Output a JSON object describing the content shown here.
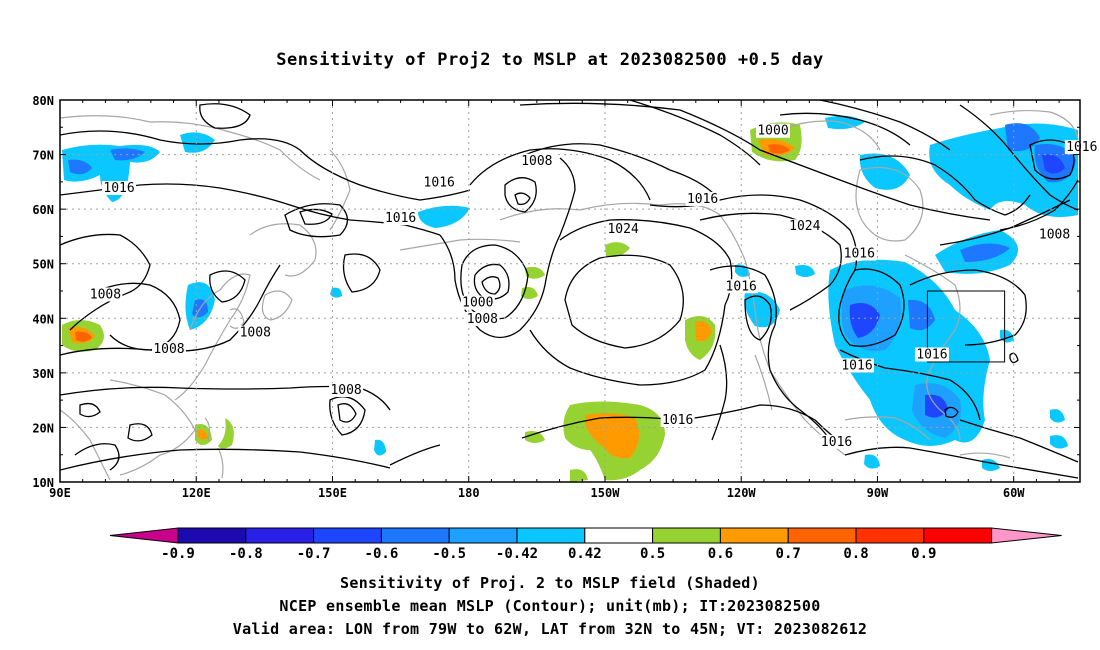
{
  "title": "Sensitivity of Proj2 to MSLP at 2023082500 +0.5 day",
  "axes": {
    "lon_labels": [
      "90E",
      "120E",
      "150E",
      "180",
      "150W",
      "120W",
      "90W",
      "60W"
    ],
    "lat_labels": [
      "80N",
      "70N",
      "60N",
      "50N",
      "40N",
      "30N",
      "20N",
      "10N"
    ]
  },
  "contour_labels": [
    {
      "text": "1016",
      "lon": 103,
      "lat": 63.5
    },
    {
      "text": "1016",
      "lon": 173.5,
      "lat": 64.5
    },
    {
      "text": "1016",
      "lon": 165,
      "lat": 58
    },
    {
      "text": "1008",
      "lon": 195,
      "lat": 68.5
    },
    {
      "text": "1000",
      "lon": 247,
      "lat": 74
    },
    {
      "text": "1016",
      "lon": 315,
      "lat": 71
    },
    {
      "text": "1016",
      "lon": 231.5,
      "lat": 61.5
    },
    {
      "text": "1024",
      "lon": 214,
      "lat": 56
    },
    {
      "text": "1024",
      "lon": 254,
      "lat": 56.5
    },
    {
      "text": "1008",
      "lon": 309,
      "lat": 55
    },
    {
      "text": "1016",
      "lon": 266,
      "lat": 51.5
    },
    {
      "text": "1016",
      "lon": 240,
      "lat": 45.5
    },
    {
      "text": "1008",
      "lon": 100,
      "lat": 44
    },
    {
      "text": "1008",
      "lon": 133,
      "lat": 37
    },
    {
      "text": "1008",
      "lon": 114,
      "lat": 34
    },
    {
      "text": "1000",
      "lon": 182,
      "lat": 42.5
    },
    {
      "text": "1008",
      "lon": 183,
      "lat": 39.5
    },
    {
      "text": "1016",
      "lon": 282,
      "lat": 33
    },
    {
      "text": "1016",
      "lon": 265.5,
      "lat": 31
    },
    {
      "text": "1008",
      "lon": 153,
      "lat": 26.5
    },
    {
      "text": "1016",
      "lon": 226,
      "lat": 21
    },
    {
      "text": "1016",
      "lon": 261,
      "lat": 17
    }
  ],
  "valid_area": {
    "lon": [
      281,
      298
    ],
    "lat": [
      32,
      45
    ]
  },
  "colorbar": {
    "colors": [
      "#1a0ab0",
      "#2820e6",
      "#1e46ff",
      "#1e78ff",
      "#1ea0ff",
      "#0ac8ff",
      "#ffffff",
      "#96d232",
      "#ff9a00",
      "#ff6400",
      "#ff3200",
      "#ff0000"
    ],
    "under_color": "#c8008c",
    "over_color": "#ff96c8",
    "labels": [
      "-0.9",
      "-0.8",
      "-0.7",
      "-0.6",
      "-0.5",
      "-0.42",
      "0.42",
      "0.5",
      "0.6",
      "0.7",
      "0.8",
      "0.9"
    ]
  },
  "footer": {
    "line1": "Sensitivity of Proj. 2 to MSLP field (Shaded)",
    "line2": "NCEP ensemble mean MSLP (Contour); unit(mb); IT:2023082500",
    "line3": "Valid area: LON from 79W to 62W, LAT from 32N to 45N; VT: 2023082612"
  }
}
